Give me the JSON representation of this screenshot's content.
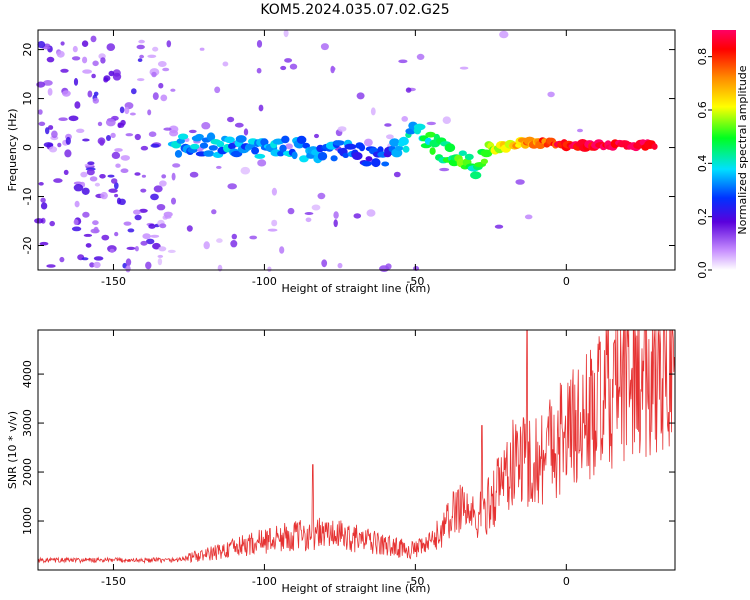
{
  "title": "KOM5.2024.035.07.02.G25",
  "chart_data": [
    {
      "type": "heatmap",
      "xlabel": "Height of straight line (km)",
      "ylabel": "Frequency (Hz)",
      "xlim": [
        -175,
        36
      ],
      "ylim": [
        -25,
        24
      ],
      "xticks": [
        -150,
        -100,
        -50,
        0
      ],
      "yticks": [
        -20,
        -10,
        0,
        10,
        20
      ],
      "colorbar": {
        "label": "Normalized spectral amplitude",
        "range": [
          0,
          0.9
        ],
        "ticks": [
          "0.0",
          "0.2",
          "0.4",
          "0.6",
          "0.8"
        ]
      },
      "signal_trace": [
        {
          "x": -130,
          "freq": 0.5,
          "amp": 0.35
        },
        {
          "x": -120,
          "freq": 0.5,
          "amp": 0.33
        },
        {
          "x": -110,
          "freq": 0,
          "amp": 0.33
        },
        {
          "x": -100,
          "freq": 0,
          "amp": 0.35
        },
        {
          "x": -90,
          "freq": 0,
          "amp": 0.34
        },
        {
          "x": -80,
          "freq": -1,
          "amp": 0.3
        },
        {
          "x": -70,
          "freq": -1,
          "amp": 0.28
        },
        {
          "x": -60,
          "freq": -2,
          "amp": 0.25
        },
        {
          "x": -50,
          "freq": 3,
          "amp": 0.4
        },
        {
          "x": -45,
          "freq": 1,
          "amp": 0.45
        },
        {
          "x": -40,
          "freq": -1,
          "amp": 0.45
        },
        {
          "x": -35,
          "freq": -3,
          "amp": 0.5
        },
        {
          "x": -30,
          "freq": -4,
          "amp": 0.45
        },
        {
          "x": -25,
          "freq": 0,
          "amp": 0.55
        },
        {
          "x": -20,
          "freq": 0,
          "amp": 0.6
        },
        {
          "x": -15,
          "freq": 1,
          "amp": 0.7
        },
        {
          "x": -10,
          "freq": 1,
          "amp": 0.75
        },
        {
          "x": -5,
          "freq": 1,
          "amp": 0.8
        },
        {
          "x": 0,
          "freq": 0.5,
          "amp": 0.85
        },
        {
          "x": 10,
          "freq": 0.5,
          "amp": 0.88
        },
        {
          "x": 20,
          "freq": 0.5,
          "amp": 0.88
        },
        {
          "x": 30,
          "freq": 0.5,
          "amp": 0.9
        }
      ]
    },
    {
      "type": "line",
      "xlabel": "Height of straight line (km)",
      "ylabel": "SNR (10 * v/v)",
      "xlim": [
        -175,
        36
      ],
      "ylim": [
        0,
        4900
      ],
      "xticks": [
        -150,
        -100,
        -50,
        0
      ],
      "yticks": [
        1000,
        2000,
        3000,
        4000
      ],
      "color": "#e63232",
      "x": [
        -175,
        -160,
        -150,
        -140,
        -130,
        -120,
        -110,
        -100,
        -90,
        -80,
        -70,
        -60,
        -50,
        -45,
        -40,
        -35,
        -30,
        -25,
        -20,
        -15,
        -10,
        -5,
        0,
        5,
        10,
        15,
        20,
        25,
        30,
        36
      ],
      "y": [
        200,
        200,
        200,
        200,
        200,
        300,
        450,
        600,
        700,
        750,
        650,
        500,
        400,
        550,
        900,
        1400,
        1000,
        1400,
        2000,
        2300,
        2200,
        2600,
        2800,
        3000,
        3300,
        3600,
        3900,
        4100,
        4300,
        4400
      ],
      "peaks": [
        {
          "x": -84,
          "y": 2150
        },
        {
          "x": -13,
          "y": 4950
        },
        {
          "x": -28,
          "y": 2950
        }
      ]
    }
  ]
}
